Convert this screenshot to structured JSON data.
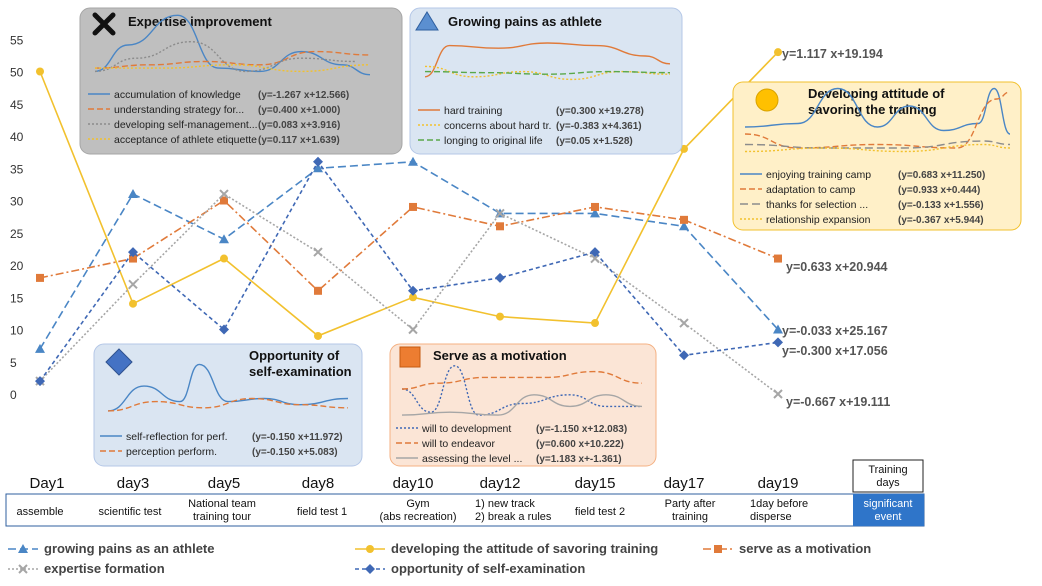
{
  "chart_data": {
    "type": "line",
    "title": "",
    "xlabel": "",
    "ylabel": "",
    "ylim": [
      0,
      55
    ],
    "yticks": [
      0,
      5,
      10,
      15,
      20,
      25,
      30,
      35,
      40,
      45,
      50,
      55
    ],
    "grid": false,
    "legend_position": "bottom",
    "categories": [
      "Day1",
      "day3",
      "day5",
      "day8",
      "day10",
      "day12",
      "day15",
      "day17",
      "day19"
    ],
    "events": [
      "assemble",
      "scientific test",
      "National team training tour",
      "field test 1",
      "Gym (abs recreation)",
      "1) new track 2) break a rules",
      "field test 2",
      "Party after training",
      "1day before disperse"
    ],
    "events_header": {
      "top": "Training days",
      "bottom": "significant event"
    },
    "series": [
      {
        "name": "growing pains as an athlete",
        "color": "#4a86c5",
        "dash": "8,4",
        "marker": "triangle",
        "values": [
          7,
          31,
          24,
          35,
          36,
          28,
          28,
          26,
          10
        ],
        "equation": "y=-0.033 x+25.167"
      },
      {
        "name": "developing the attitude of savoring training",
        "color": "#f2c12e",
        "dash": "",
        "marker": "circle",
        "values": [
          50,
          14,
          21,
          9,
          15,
          12,
          11,
          38,
          53
        ],
        "equation": "y=1.117 x+19.194"
      },
      {
        "name": "serve as a motivation",
        "color": "#e07a3a",
        "dash": "8,3,2,3",
        "marker": "square",
        "values": [
          18,
          21,
          30,
          16,
          29,
          26,
          29,
          27,
          21
        ],
        "equation": "y=0.633 x+20.944"
      },
      {
        "name": "expertise formation",
        "color": "#a6a6a6",
        "dash": "2,2",
        "marker": "x",
        "values": [
          2,
          17,
          31,
          22,
          10,
          28,
          21,
          11,
          0
        ],
        "equation": "y=-0.667 x+19.111"
      },
      {
        "name": "opportunity of self-examination",
        "color": "#3f68b5",
        "dash": "4,3",
        "marker": "diamond",
        "values": [
          2,
          22,
          10,
          36,
          16,
          18,
          22,
          6,
          8
        ],
        "equation": "y=-0.300 x+17.056"
      }
    ],
    "insets": [
      {
        "id": "expertise",
        "title": "Expertise improvement",
        "icon": "x-mark-icon",
        "entries": [
          {
            "label": "accumulation of knowledge",
            "eq": "(y=-1.267 x+12.566)",
            "color": "#4a86c5",
            "dash": ""
          },
          {
            "label": "understanding strategy for...",
            "eq": "(y=0.400 x+1.000)",
            "color": "#e07a3a",
            "dash": "6,3"
          },
          {
            "label": "developing self-management...",
            "eq": "(y=0.083 x+3.916)",
            "color": "#8c8c8c",
            "dash": "2,2"
          },
          {
            "label": "acceptance of athlete etiquette",
            "eq": "(y=0.117 x+1.639)",
            "color": "#f2c12e",
            "dash": "2,2"
          }
        ]
      },
      {
        "id": "growing",
        "title": "Growing pains as athlete",
        "icon": "triangle-icon",
        "entries": [
          {
            "label": "hard training",
            "eq": "(y=0.300 x+19.278)",
            "color": "#e07a3a",
            "dash": ""
          },
          {
            "label": "concerns about hard tr.",
            "eq": "(y=-0.383 x+4.361)",
            "color": "#f2c12e",
            "dash": "2,2"
          },
          {
            "label": "longing to original life",
            "eq": "(y=0.05 x+1.528)",
            "color": "#5aa84a",
            "dash": "6,3"
          }
        ]
      },
      {
        "id": "savoring",
        "title": "Developing attitude of savoring the training",
        "title_lines": [
          "Developing attitude of",
          "savoring the training"
        ],
        "icon": "circle-icon",
        "entries": [
          {
            "label": "enjoying training camp",
            "eq": "(y=0.683 x+11.250)",
            "color": "#4a86c5",
            "dash": ""
          },
          {
            "label": "adaptation to camp",
            "eq": "(y=0.933 x+0.444)",
            "color": "#e07a3a",
            "dash": "6,3"
          },
          {
            "label": "thanks for selection ...",
            "eq": "(y=-0.133 x+1.556)",
            "color": "#8c8c8c",
            "dash": "8,4"
          },
          {
            "label": "relationship expansion",
            "eq": "(y=-0.367 x+5.944)",
            "color": "#f2c12e",
            "dash": "2,2"
          }
        ]
      },
      {
        "id": "selfexam",
        "title": "Opportunity of self-examination",
        "title_lines": [
          "Opportunity of",
          "self-examination"
        ],
        "icon": "diamond-icon",
        "entries": [
          {
            "label": "self-reflection for perf.",
            "eq": "(y=-0.150 x+11.972)",
            "color": "#4a86c5",
            "dash": ""
          },
          {
            "label": "perception perform.",
            "eq": "(y=-0.150 x+5.083)",
            "color": "#e07a3a",
            "dash": "6,3"
          }
        ]
      },
      {
        "id": "motivation",
        "title": "Serve as a motivation",
        "icon": "square-icon",
        "entries": [
          {
            "label": "will to development",
            "eq": "(y=-1.150 x+12.083)",
            "color": "#3f68b5",
            "dash": "2,2"
          },
          {
            "label": "will to endeavor",
            "eq": "(y=0.600 x+10.222)",
            "color": "#e07a3a",
            "dash": "6,3"
          },
          {
            "label": "assessing the level ...",
            "eq": "(y=1.183 x+-1.361)",
            "color": "#a6a6a6",
            "dash": ""
          }
        ]
      }
    ]
  }
}
